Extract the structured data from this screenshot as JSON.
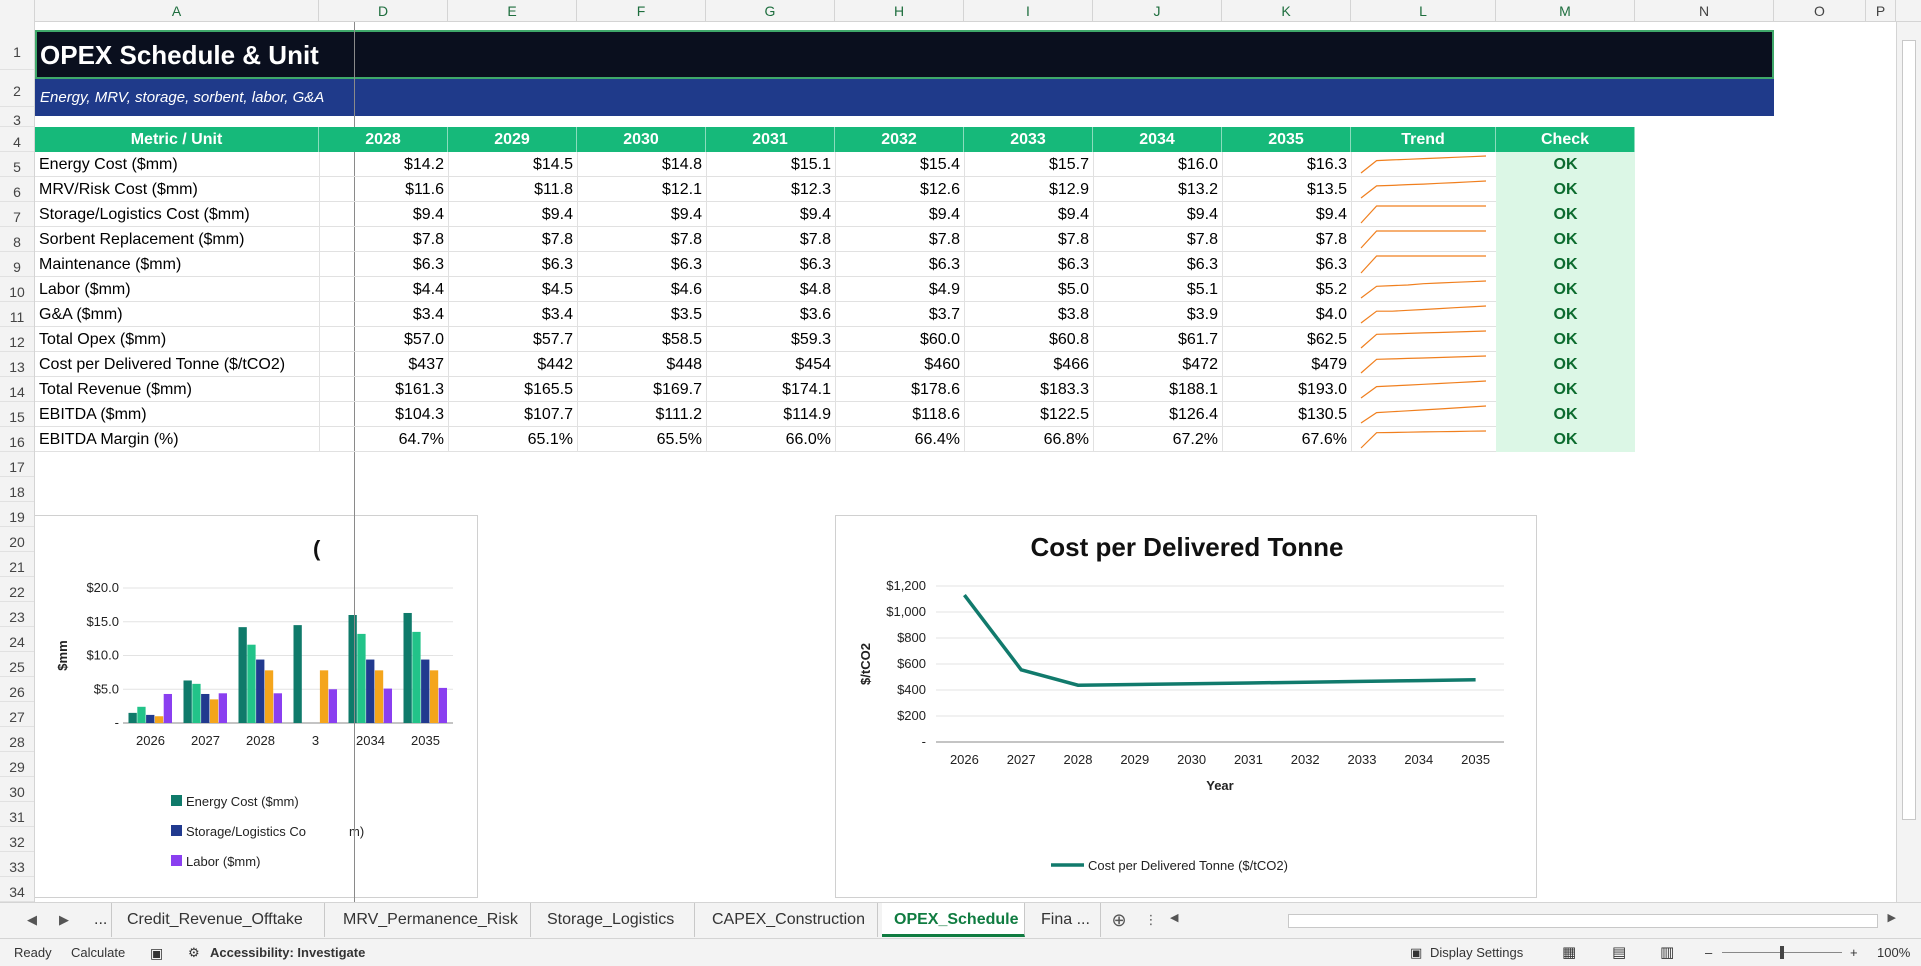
{
  "sheet": {
    "title": "OPEX Schedule & Unit",
    "subtitle": "Energy, MRV, storage, sorbent, labor, G&A"
  },
  "columns": [
    "A",
    "D",
    "E",
    "F",
    "G",
    "H",
    "I",
    "J",
    "K",
    "L",
    "M",
    "N",
    "O",
    "P"
  ],
  "rows": [
    "1",
    "2",
    "3",
    "4",
    "5",
    "6",
    "7",
    "8",
    "9",
    "10",
    "11",
    "12",
    "13",
    "14",
    "15",
    "16",
    "17",
    "18",
    "19",
    "20",
    "21",
    "22",
    "23",
    "24",
    "25",
    "26",
    "27",
    "28",
    "29",
    "30",
    "31",
    "32",
    "33",
    "34"
  ],
  "table": {
    "header": [
      "Metric / Unit",
      "2028",
      "2029",
      "2030",
      "2031",
      "2032",
      "2033",
      "2034",
      "2035",
      "Trend",
      "Check"
    ],
    "rows": [
      {
        "label": "Energy Cost ($mm)",
        "values": [
          "$14.2",
          "$14.5",
          "$14.8",
          "$15.1",
          "$15.4",
          "$15.7",
          "$16.0",
          "$16.3"
        ],
        "check": "OK"
      },
      {
        "label": "MRV/Risk Cost ($mm)",
        "values": [
          "$11.6",
          "$11.8",
          "$12.1",
          "$12.3",
          "$12.6",
          "$12.9",
          "$13.2",
          "$13.5"
        ],
        "check": "OK"
      },
      {
        "label": "Storage/Logistics Cost ($mm)",
        "values": [
          "$9.4",
          "$9.4",
          "$9.4",
          "$9.4",
          "$9.4",
          "$9.4",
          "$9.4",
          "$9.4"
        ],
        "check": "OK"
      },
      {
        "label": "Sorbent Replacement ($mm)",
        "values": [
          "$7.8",
          "$7.8",
          "$7.8",
          "$7.8",
          "$7.8",
          "$7.8",
          "$7.8",
          "$7.8"
        ],
        "check": "OK"
      },
      {
        "label": "Maintenance ($mm)",
        "values": [
          "$6.3",
          "$6.3",
          "$6.3",
          "$6.3",
          "$6.3",
          "$6.3",
          "$6.3",
          "$6.3"
        ],
        "check": "OK"
      },
      {
        "label": "Labor ($mm)",
        "values": [
          "$4.4",
          "$4.5",
          "$4.6",
          "$4.8",
          "$4.9",
          "$5.0",
          "$5.1",
          "$5.2"
        ],
        "check": "OK"
      },
      {
        "label": "G&A ($mm)",
        "values": [
          "$3.4",
          "$3.4",
          "$3.5",
          "$3.6",
          "$3.7",
          "$3.8",
          "$3.9",
          "$4.0"
        ],
        "check": "OK"
      },
      {
        "label": "Total Opex ($mm)",
        "values": [
          "$57.0",
          "$57.7",
          "$58.5",
          "$59.3",
          "$60.0",
          "$60.8",
          "$61.7",
          "$62.5"
        ],
        "check": "OK"
      },
      {
        "label": "Cost per Delivered Tonne ($/tCO2)",
        "values": [
          "$437",
          "$442",
          "$448",
          "$454",
          "$460",
          "$466",
          "$472",
          "$479"
        ],
        "check": "OK"
      },
      {
        "label": "Total Revenue ($mm)",
        "values": [
          "$161.3",
          "$165.5",
          "$169.7",
          "$174.1",
          "$178.6",
          "$183.3",
          "$188.1",
          "$193.0"
        ],
        "check": "OK"
      },
      {
        "label": "EBITDA ($mm)",
        "values": [
          "$104.3",
          "$107.7",
          "$111.2",
          "$114.9",
          "$118.6",
          "$122.5",
          "$126.4",
          "$130.5"
        ],
        "check": "OK"
      },
      {
        "label": "EBITDA Margin (%)",
        "values": [
          "64.7%",
          "65.1%",
          "65.5%",
          "66.0%",
          "66.4%",
          "66.8%",
          "67.2%",
          "67.6%"
        ],
        "check": "OK"
      }
    ],
    "spark_color": "#f07f1e"
  },
  "chart_data": [
    {
      "type": "bar",
      "title": "",
      "ylabel": "$mm",
      "xlabel": "",
      "ylim": [
        0,
        20
      ],
      "yticks": [
        "-",
        "$5.0",
        "$10.0",
        "$15.0",
        "$20.0"
      ],
      "categories": [
        "2026",
        "2027",
        "2028",
        "3",
        "2034",
        "2035"
      ],
      "series": [
        {
          "name": "Energy Cost ($mm)",
          "color": "#0f7a6a",
          "values": [
            1.5,
            6.3,
            14.2,
            14.5,
            16.0,
            16.3
          ]
        },
        {
          "name": "",
          "color": "#22c389",
          "values": [
            2.4,
            5.8,
            11.6,
            0,
            13.2,
            13.5
          ]
        },
        {
          "name": "Storage/Logistics Cost ($mm)",
          "color": "#213a8f",
          "values": [
            1.2,
            4.3,
            9.4,
            0,
            9.4,
            9.4
          ]
        },
        {
          "name": "",
          "color": "#f4a51c",
          "values": [
            1.0,
            3.5,
            7.8,
            7.8,
            7.8,
            7.8
          ]
        },
        {
          "name": "Labor ($mm)",
          "color": "#8a3ff0",
          "values": [
            4.3,
            4.4,
            4.4,
            5.0,
            5.1,
            5.2
          ]
        }
      ],
      "legend_labels": [
        "Energy Cost ($mm)",
        "Storage/Logistics Co",
        "Labor ($mm)"
      ],
      "legend_tail": "m)",
      "legend": "bottom",
      "partial_title_char": "("
    },
    {
      "type": "line",
      "title": "Cost per Delivered Tonne",
      "xlabel": "Year",
      "ylabel": "$/tCO2",
      "ylim": [
        0,
        1200
      ],
      "yticks": [
        "-",
        "$200",
        "$400",
        "$600",
        "$800",
        "$1,000",
        "$1,200"
      ],
      "x": [
        "2026",
        "2027",
        "2028",
        "2029",
        "2030",
        "2031",
        "2032",
        "2033",
        "2034",
        "2035"
      ],
      "series": [
        {
          "name": "Cost per Delivered Tonne ($/tCO2)",
          "color": "#117a6c",
          "values": [
            1130,
            555,
            437,
            442,
            448,
            454,
            460,
            466,
            472,
            479
          ]
        }
      ],
      "legend": "bottom"
    }
  ],
  "tabs": [
    "...",
    "Credit_Revenue_Offtake",
    "MRV_Permanence_Risk",
    "Storage_Logistics",
    "CAPEX_Construction",
    "OPEX_Schedule",
    "Fina ..."
  ],
  "active_tab": "OPEX_Schedule",
  "status": {
    "ready": "Ready",
    "calculate": "Calculate",
    "accessibility": "Accessibility: Investigate",
    "display_settings": "Display Settings",
    "zoom": "100%"
  }
}
